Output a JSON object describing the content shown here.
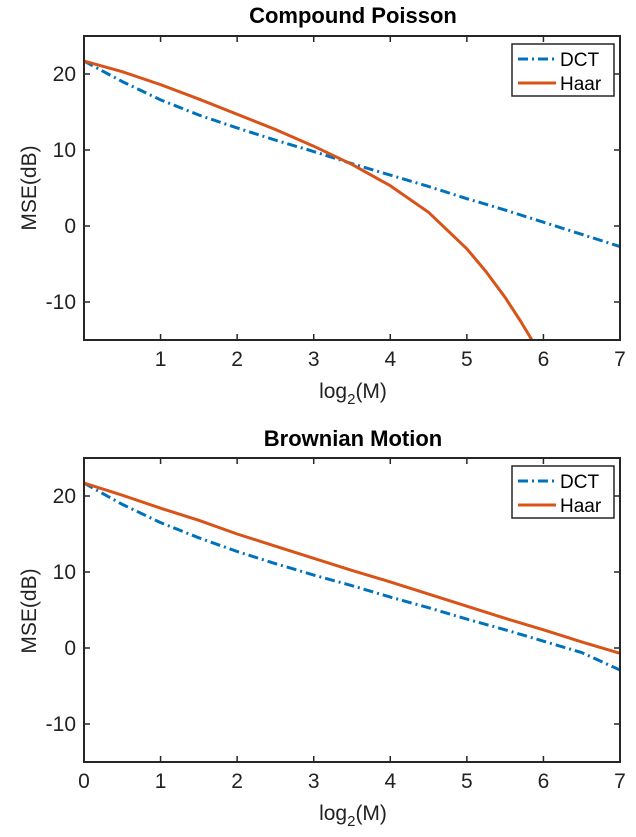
{
  "chart_data": [
    {
      "type": "line",
      "title": "Compound Poisson",
      "xlabel": "log₂(M)",
      "ylabel": "MSE(dB)",
      "xlim": [
        0,
        7
      ],
      "ylim": [
        -15,
        25
      ],
      "xticks": [
        1,
        2,
        3,
        4,
        5,
        6,
        7
      ],
      "yticks": [
        -10,
        0,
        10,
        20
      ],
      "grid": false,
      "legend_position": "top-right",
      "series": [
        {
          "name": "DCT",
          "color": "#0072BD",
          "style": "dash-dot",
          "x": [
            0,
            0.5,
            1,
            1.5,
            2,
            2.5,
            3,
            3.5,
            4,
            4.5,
            5,
            5.5,
            6,
            6.5,
            7
          ],
          "y": [
            21.7,
            19.0,
            16.6,
            14.6,
            12.9,
            11.3,
            9.8,
            8.2,
            6.7,
            5.2,
            3.6,
            2.1,
            0.5,
            -1.1,
            -2.7
          ]
        },
        {
          "name": "Haar",
          "color": "#D95319",
          "style": "solid",
          "x": [
            0,
            0.5,
            1,
            1.5,
            2,
            2.5,
            3,
            3.5,
            4,
            4.5,
            5,
            5.25,
            5.5,
            5.7,
            5.85
          ],
          "y": [
            21.7,
            20.3,
            18.6,
            16.7,
            14.7,
            12.7,
            10.5,
            8.1,
            5.3,
            1.8,
            -3.0,
            -6.0,
            -9.4,
            -12.5,
            -15.0
          ]
        }
      ]
    },
    {
      "type": "line",
      "title": "Brownian Motion",
      "xlabel": "log₂(M)",
      "ylabel": "MSE(dB)",
      "xlim": [
        0,
        7
      ],
      "ylim": [
        -15,
        25
      ],
      "xticks": [
        0,
        1,
        2,
        3,
        4,
        5,
        6,
        7
      ],
      "yticks": [
        -10,
        0,
        10,
        20
      ],
      "grid": false,
      "legend_position": "top-right",
      "series": [
        {
          "name": "DCT",
          "color": "#0072BD",
          "style": "dash-dot",
          "x": [
            0,
            0.5,
            1,
            1.5,
            2,
            2.5,
            3,
            3.5,
            4,
            4.5,
            5,
            5.5,
            6,
            6.5,
            7
          ],
          "y": [
            21.7,
            18.9,
            16.5,
            14.5,
            12.7,
            11.1,
            9.6,
            8.2,
            6.7,
            5.3,
            3.8,
            2.4,
            0.9,
            -0.6,
            -2.9
          ]
        },
        {
          "name": "Haar",
          "color": "#D95319",
          "style": "solid",
          "x": [
            0,
            0.5,
            1,
            1.5,
            2,
            2.5,
            3,
            3.5,
            4,
            4.5,
            5,
            5.5,
            6,
            6.5,
            7
          ],
          "y": [
            21.7,
            20.1,
            18.4,
            16.8,
            15.0,
            13.4,
            11.8,
            10.2,
            8.7,
            7.1,
            5.5,
            3.9,
            2.4,
            0.8,
            -0.7
          ]
        }
      ]
    }
  ]
}
